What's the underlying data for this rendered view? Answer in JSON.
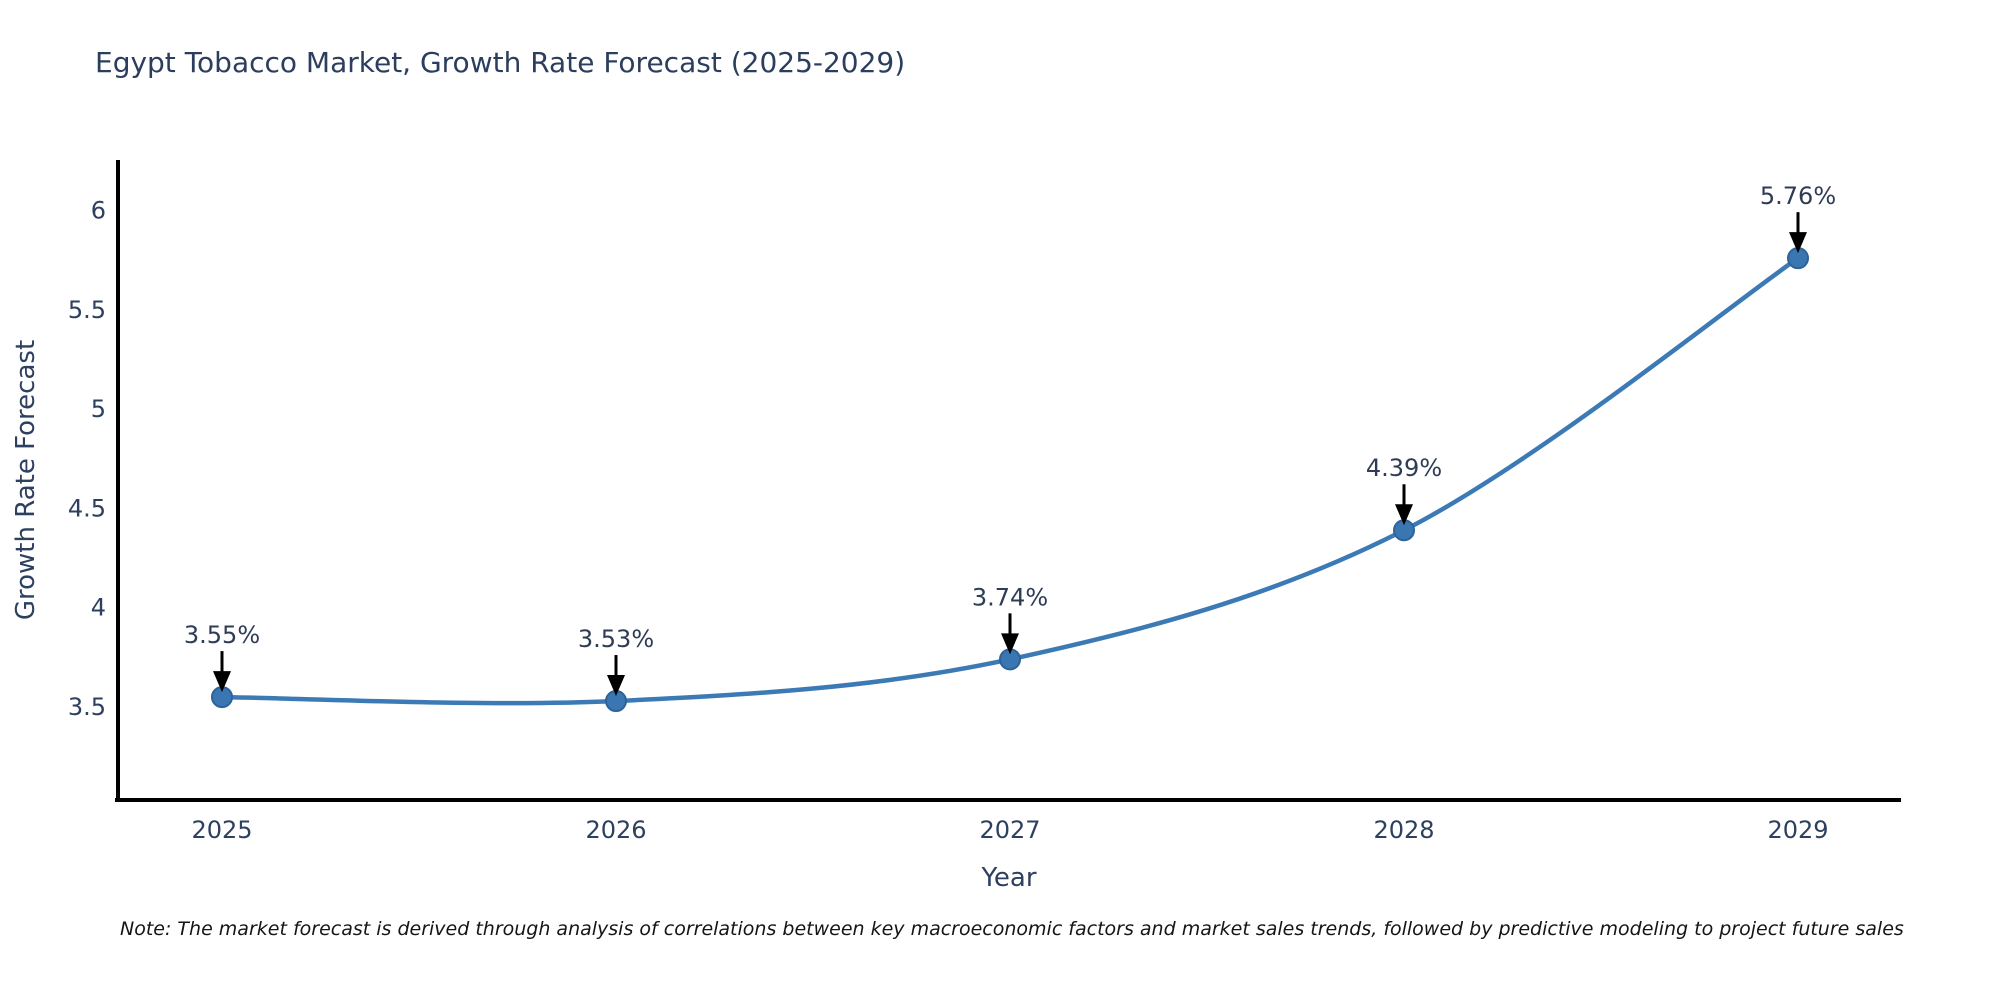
{
  "title": "Egypt Tobacco Market, Growth Rate Forecast (2025-2029)",
  "note": "Note: The market forecast is derived through analysis of correlations between key macroeconomic factors and market sales trends, followed by predictive modeling to project future sales",
  "chart_data": {
    "type": "line",
    "title": "Egypt Tobacco Market, Growth Rate Forecast (2025-2029)",
    "xlabel": "Year",
    "ylabel": "Growth Rate Forecast",
    "categories": [
      "2025",
      "2026",
      "2027",
      "2028",
      "2029"
    ],
    "values": [
      3.55,
      3.53,
      3.74,
      4.39,
      5.76
    ],
    "point_labels": [
      "3.55%",
      "3.53%",
      "3.74%",
      "4.39%",
      "5.76%"
    ],
    "y_ticks": [
      3.5,
      4,
      4.5,
      5,
      5.5,
      6
    ],
    "ylim": [
      3.0,
      6.3
    ],
    "line_shape": "spline",
    "grid": false,
    "legend_position": "none",
    "colors": {
      "line": "#3c7ab5",
      "marker_fill": "#3a76b2",
      "marker_edge": "#2d6399",
      "axis": "#000000",
      "text": "#2e405f",
      "annotation_arrow": "#000000"
    }
  }
}
